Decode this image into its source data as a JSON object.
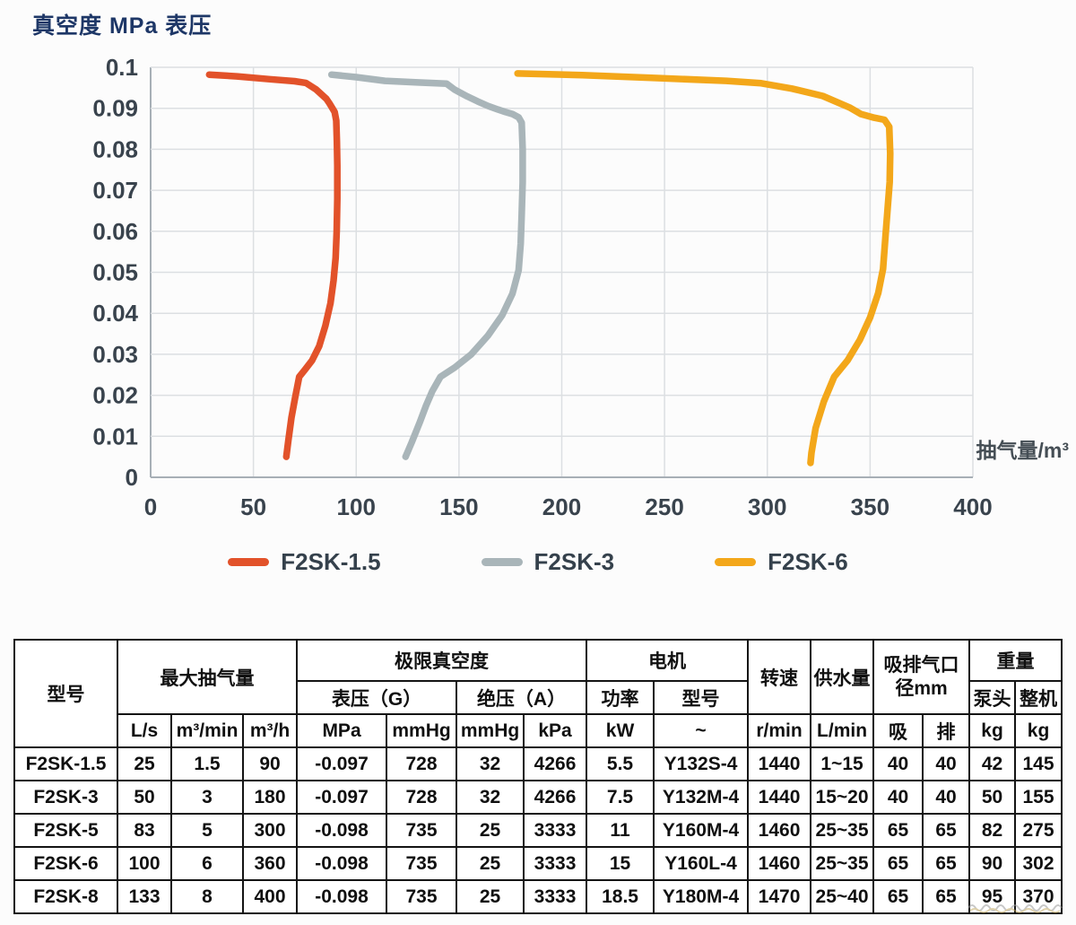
{
  "title": "真空度 MPa 表压",
  "chart_data": {
    "type": "line",
    "title": "真空度 MPa 表压",
    "xlabel": "抽气量/m³",
    "ylabel": "真空度 MPa 表压",
    "xlim": [
      0,
      400
    ],
    "ylim": [
      0,
      0.1
    ],
    "x_ticks": [
      0,
      50,
      100,
      150,
      200,
      250,
      300,
      350,
      400
    ],
    "x_tick_labels": [
      "0",
      "50",
      "100",
      "150",
      "200",
      "250",
      "300",
      "350",
      "400"
    ],
    "y_ticks": [
      0,
      0.01,
      0.02,
      0.03,
      0.04,
      0.05,
      0.06,
      0.07,
      0.08,
      0.09,
      0.1
    ],
    "y_tick_labels": [
      "0",
      "0.01",
      "0.02",
      "0.03",
      "0.04",
      "0.05",
      "0.06",
      "0.07",
      "0.08",
      "0.09",
      "0.1"
    ],
    "grid": true,
    "legend_position": "bottom",
    "grid_color": "#dcdfe2",
    "axis_color": "#a7afb6",
    "series": [
      {
        "name": "F2SK-1.5",
        "color": "#e2522a",
        "points": [
          [
            28.5,
            0.0982
          ],
          [
            42,
            0.0978
          ],
          [
            58,
            0.0971
          ],
          [
            70,
            0.0966
          ],
          [
            75.5,
            0.0962
          ],
          [
            80.5,
            0.0946
          ],
          [
            85.5,
            0.0923
          ],
          [
            87,
            0.0912
          ],
          [
            89.5,
            0.0891
          ],
          [
            90.3,
            0.087
          ],
          [
            90.6,
            0.082
          ],
          [
            90.8,
            0.076
          ],
          [
            90.8,
            0.068
          ],
          [
            90.5,
            0.06
          ],
          [
            90,
            0.0535
          ],
          [
            89,
            0.048
          ],
          [
            87.5,
            0.0425
          ],
          [
            85,
            0.037
          ],
          [
            82,
            0.032
          ],
          [
            78.5,
            0.0285
          ],
          [
            75,
            0.0262
          ],
          [
            72.3,
            0.0245
          ],
          [
            70.3,
            0.0195
          ],
          [
            68.5,
            0.0145
          ],
          [
            67,
            0.009
          ],
          [
            66,
            0.005
          ]
        ]
      },
      {
        "name": "F2SK-3",
        "color": "#a9b5b9",
        "points": [
          [
            88,
            0.0982
          ],
          [
            100,
            0.0976
          ],
          [
            114,
            0.0967
          ],
          [
            130,
            0.0963
          ],
          [
            144,
            0.096
          ],
          [
            148,
            0.0945
          ],
          [
            154,
            0.0929
          ],
          [
            159,
            0.0917
          ],
          [
            164,
            0.0906
          ],
          [
            169,
            0.0897
          ],
          [
            172.5,
            0.0891
          ],
          [
            176,
            0.0886
          ],
          [
            179,
            0.0878
          ],
          [
            180.5,
            0.0865
          ],
          [
            181,
            0.08
          ],
          [
            181,
            0.072
          ],
          [
            180.5,
            0.064
          ],
          [
            180,
            0.057
          ],
          [
            179,
            0.0505
          ],
          [
            176,
            0.0448
          ],
          [
            171,
            0.0395
          ],
          [
            164,
            0.0345
          ],
          [
            156,
            0.03
          ],
          [
            148,
            0.0268
          ],
          [
            141,
            0.0245
          ],
          [
            137,
            0.021
          ],
          [
            134,
            0.0175
          ],
          [
            131,
            0.0135
          ],
          [
            127,
            0.0085
          ],
          [
            124,
            0.005
          ]
        ]
      },
      {
        "name": "F2SK-6",
        "color": "#f3a71a",
        "points": [
          [
            178.5,
            0.0985
          ],
          [
            210,
            0.0981
          ],
          [
            245,
            0.0974
          ],
          [
            280,
            0.0967
          ],
          [
            297,
            0.0961
          ],
          [
            312,
            0.0948
          ],
          [
            327,
            0.093
          ],
          [
            340,
            0.0902
          ],
          [
            345.5,
            0.0886
          ],
          [
            352,
            0.0877
          ],
          [
            357,
            0.0872
          ],
          [
            359.3,
            0.0855
          ],
          [
            359.8,
            0.079
          ],
          [
            359.5,
            0.072
          ],
          [
            358.5,
            0.0655
          ],
          [
            357.5,
            0.059
          ],
          [
            356.3,
            0.0508
          ],
          [
            354,
            0.045
          ],
          [
            350,
            0.039
          ],
          [
            345,
            0.0335
          ],
          [
            339,
            0.0285
          ],
          [
            332.5,
            0.0245
          ],
          [
            327.5,
            0.0185
          ],
          [
            323.5,
            0.012
          ],
          [
            321.5,
            0.006
          ],
          [
            321,
            0.0035
          ]
        ]
      }
    ]
  },
  "table": {
    "header": {
      "model": "型号",
      "max_capacity": "最大抽气量",
      "ultimate_vacuum": "极限真空度",
      "gauge": "表压（G）",
      "absolute": "绝压（A）",
      "motor": "电机",
      "power": "功率",
      "motor_model": "型号",
      "speed": "转速",
      "water_supply": "供水量",
      "port_line1": "吸排气口",
      "port_line2": "径mm",
      "weight": "重量",
      "pump_head": "泵头",
      "complete_machine": "整机",
      "units": [
        "L/s",
        "m³/min",
        "m³/h",
        "MPa",
        "mmHg",
        "mmHg",
        "kPa",
        "kW",
        "~",
        "r/min",
        "L/min",
        "吸",
        "排",
        "kg",
        "kg"
      ]
    },
    "rows": [
      [
        "F2SK-1.5",
        "25",
        "1.5",
        "90",
        "-0.097",
        "728",
        "32",
        "4266",
        "5.5",
        "Y132S-4",
        "1440",
        "1~15",
        "40",
        "40",
        "42",
        "145"
      ],
      [
        "F2SK-3",
        "50",
        "3",
        "180",
        "-0.097",
        "728",
        "32",
        "4266",
        "7.5",
        "Y132M-4",
        "1440",
        "15~20",
        "40",
        "40",
        "50",
        "155"
      ],
      [
        "F2SK-5",
        "83",
        "5",
        "300",
        "-0.098",
        "735",
        "25",
        "3333",
        "11",
        "Y160M-4",
        "1460",
        "25~35",
        "65",
        "65",
        "82",
        "275"
      ],
      [
        "F2SK-6",
        "100",
        "6",
        "360",
        "-0.098",
        "735",
        "25",
        "3333",
        "15",
        "Y160L-4",
        "1460",
        "25~35",
        "65",
        "65",
        "90",
        "302"
      ],
      [
        "F2SK-8",
        "133",
        "8",
        "400",
        "-0.098",
        "735",
        "25",
        "3333",
        "18.5",
        "Y180M-4",
        "1470",
        "25~40",
        "65",
        "65",
        "95",
        "370"
      ]
    ]
  }
}
